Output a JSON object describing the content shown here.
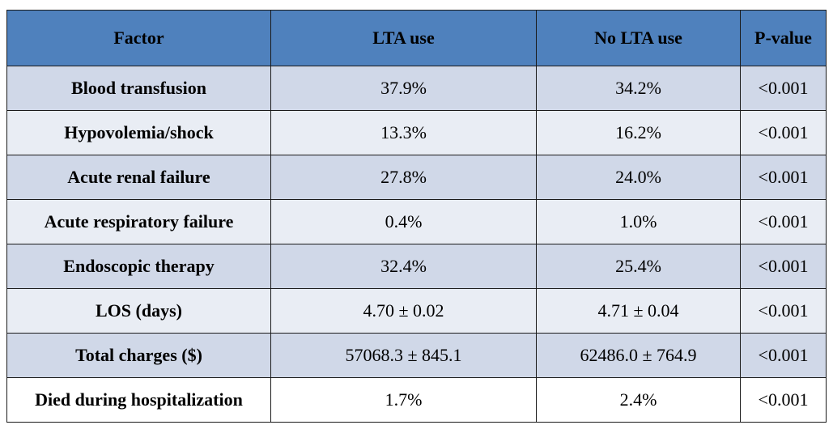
{
  "table": {
    "headers": [
      "Factor",
      "LTA use",
      "No LTA use",
      "P-value"
    ],
    "rows": [
      {
        "factor": "Blood transfusion",
        "lta": "37.9%",
        "no_lta": "34.2%",
        "p": "<0.001"
      },
      {
        "factor": "Hypovolemia/shock",
        "lta": "13.3%",
        "no_lta": "16.2%",
        "p": "<0.001"
      },
      {
        "factor": "Acute renal failure",
        "lta": "27.8%",
        "no_lta": "24.0%",
        "p": "<0.001"
      },
      {
        "factor": "Acute respiratory failure",
        "lta": "0.4%",
        "no_lta": "1.0%",
        "p": "<0.001"
      },
      {
        "factor": "Endoscopic therapy",
        "lta": "32.4%",
        "no_lta": "25.4%",
        "p": "<0.001"
      },
      {
        "factor": "LOS (days)",
        "lta": "4.70 ± 0.02",
        "no_lta": "4.71 ± 0.04",
        "p": "<0.001"
      },
      {
        "factor": "Total charges ($)",
        "lta": "57068.3 ± 845.1",
        "no_lta": "62486.0 ± 764.9",
        "p": "<0.001"
      },
      {
        "factor": "Died during hospitalization",
        "lta": "1.7%",
        "no_lta": "2.4%",
        "p": "<0.001"
      }
    ]
  },
  "colors": {
    "header_bg": "#4f81bd",
    "row_band_dark": "#d0d8e8",
    "row_band_light": "#e9edf4",
    "last_row_bg": "#ffffff"
  }
}
